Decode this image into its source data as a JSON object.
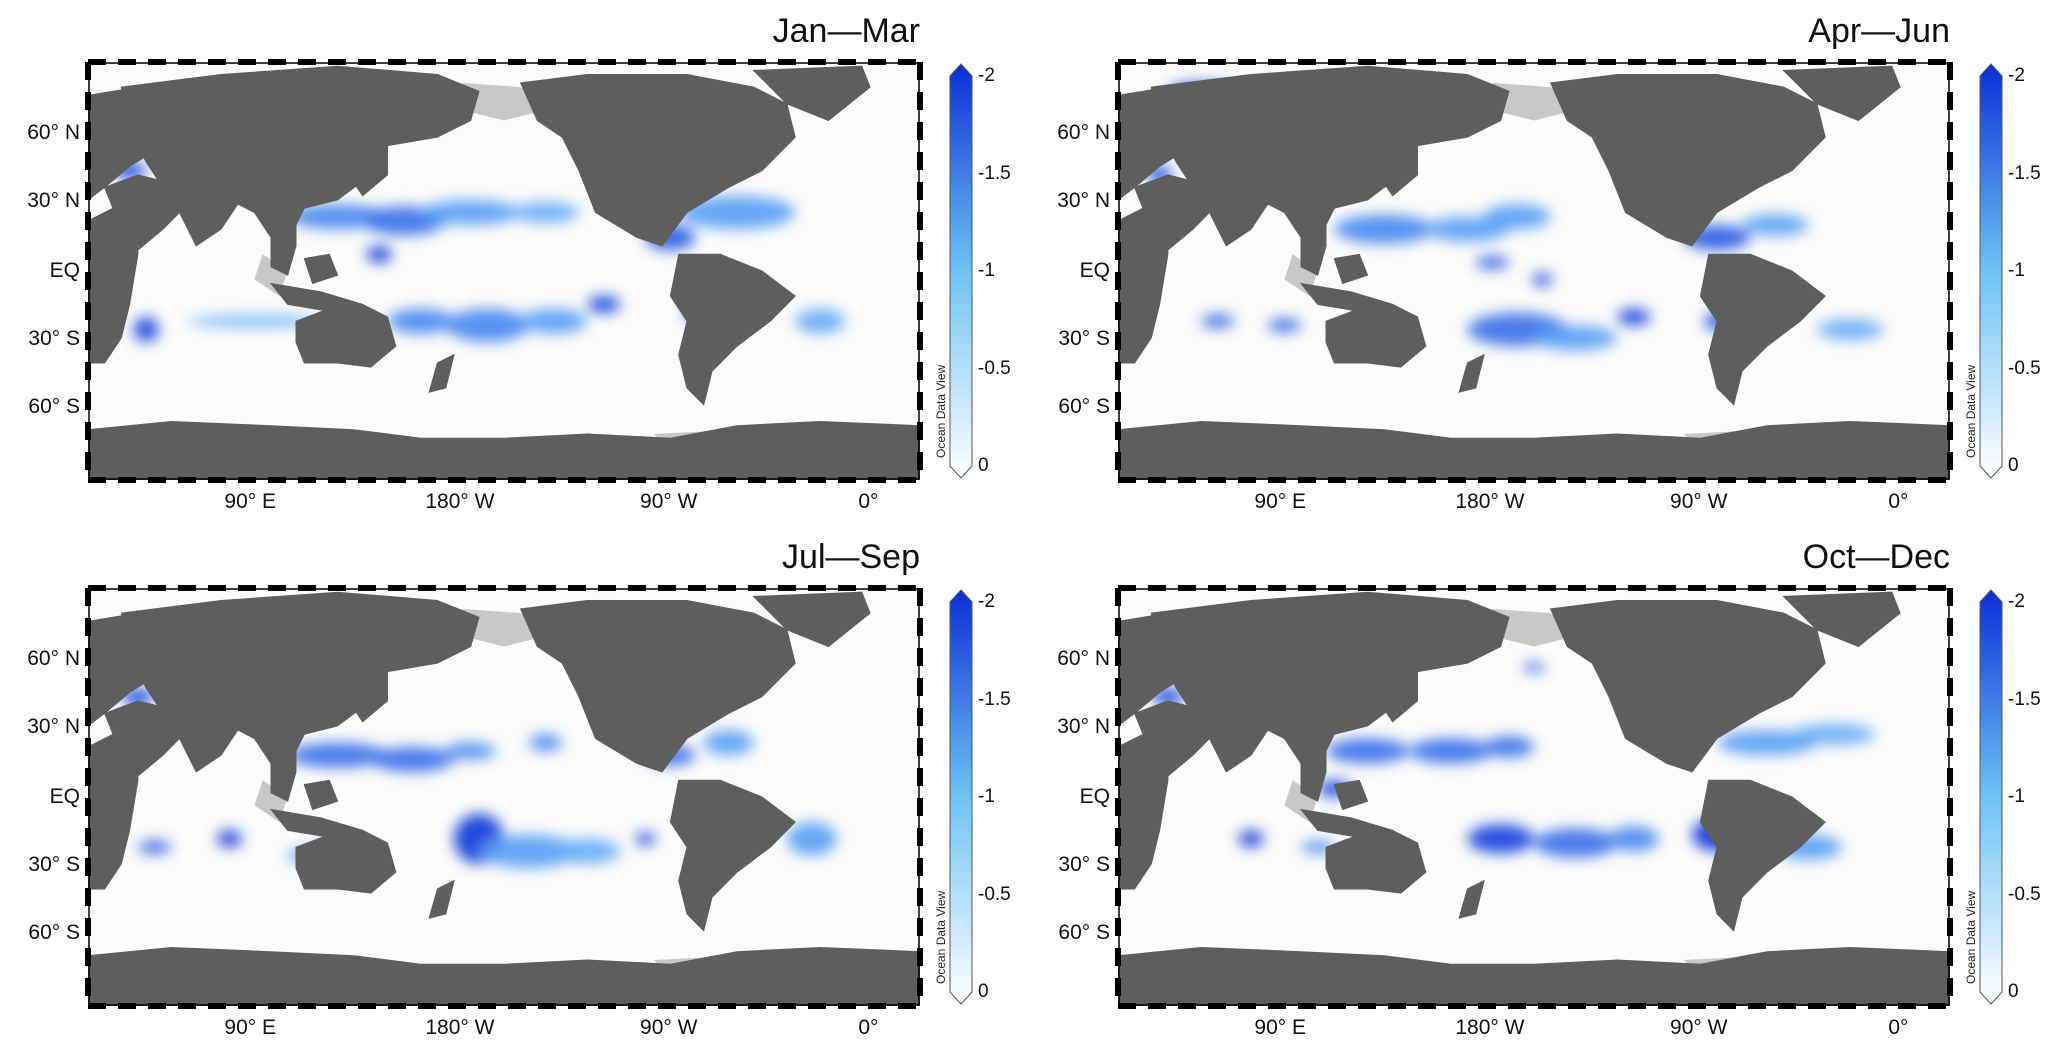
{
  "colors": {
    "land": "#5e5e5e",
    "ice": "#c8c8c8",
    "ocean": "#fdfcfa",
    "scale_low": "#ffffff",
    "scale_mid": "#6ec3f5",
    "scale_high": "#0a2ed8"
  },
  "latitude_labels": [
    "60° N",
    "30° N",
    "EQ",
    "30° S",
    "60° S"
  ],
  "longitude_labels": [
    "90° E",
    "180° W",
    "90° W",
    "0°"
  ],
  "colorbar": {
    "ticks": [
      "-2",
      "-1.5",
      "-1",
      "-0.5",
      "0"
    ],
    "credit": "Ocean Data View"
  },
  "panels": [
    {
      "title": "Jan—Mar"
    },
    {
      "title": "Apr—Jun"
    },
    {
      "title": "Jul—Sep"
    },
    {
      "title": "Oct—Dec"
    }
  ]
}
